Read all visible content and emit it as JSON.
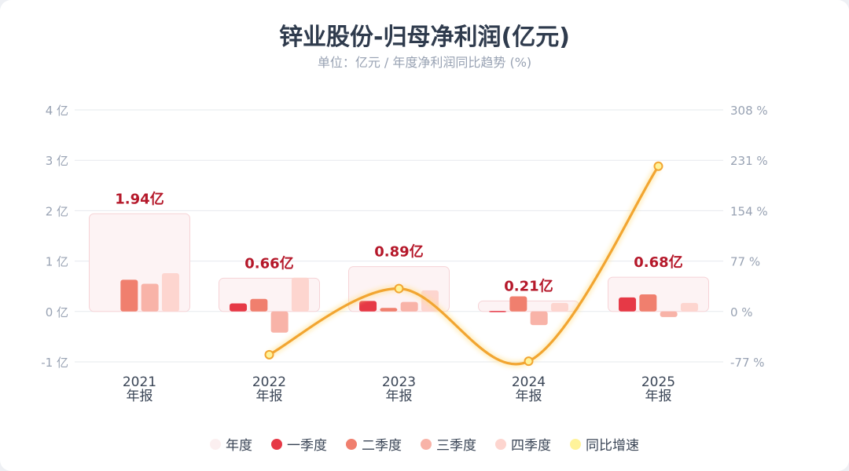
{
  "chart_data": {
    "type": "bar",
    "title": "锌业股份-归母净利润(亿元)",
    "subtitle": "单位：亿元 / 年度净利润同比趋势 (%)",
    "categories": [
      {
        "year": "2021",
        "kind": "年报"
      },
      {
        "year": "2022",
        "kind": "年报"
      },
      {
        "year": "2023",
        "kind": "年报"
      },
      {
        "year": "2024",
        "kind": "年报"
      },
      {
        "year": "2025",
        "kind": "年报"
      }
    ],
    "annual": {
      "name": "年度",
      "values": [
        1.94,
        0.66,
        0.89,
        0.21,
        0.68
      ],
      "labels": [
        "1.94亿",
        "0.66亿",
        "0.89亿",
        "0.21亿",
        "0.68亿"
      ]
    },
    "series": [
      {
        "name": "一季度",
        "values": [
          null,
          0.16,
          0.21,
          0.01,
          0.28
        ]
      },
      {
        "name": "二季度",
        "values": [
          0.63,
          0.25,
          0.07,
          0.3,
          0.34
        ]
      },
      {
        "name": "三季度",
        "values": [
          0.55,
          -0.42,
          0.19,
          -0.27,
          -0.11
        ]
      },
      {
        "name": "四季度",
        "values": [
          0.76,
          0.67,
          0.42,
          0.17,
          0.17
        ]
      }
    ],
    "yoy": {
      "name": "同比增速",
      "values": [
        null,
        -66,
        35,
        -76,
        222
      ]
    },
    "y_left": {
      "range": [
        -1,
        4
      ],
      "ticks": [
        -1,
        0,
        1,
        2,
        3,
        4
      ],
      "tick_labels": [
        "-1 亿",
        "0 亿",
        "1 亿",
        "2 亿",
        "3 亿",
        "4 亿"
      ]
    },
    "y_right": {
      "range": [
        -77,
        308
      ],
      "ticks": [
        -77,
        0,
        77,
        154,
        231,
        308
      ],
      "tick_labels": [
        "-77 %",
        "0 %",
        "77 %",
        "154 %",
        "231 %",
        "308 %"
      ]
    },
    "grid": true,
    "legend_position": "bottom-center",
    "legend": [
      {
        "name": "年度",
        "color": "#fbeff0"
      },
      {
        "name": "一季度",
        "color": "#e63946"
      },
      {
        "name": "二季度",
        "color": "#f07f6e"
      },
      {
        "name": "三季度",
        "color": "#f8b3a8"
      },
      {
        "name": "四季度",
        "color": "#fdd5cf"
      },
      {
        "name": "同比增速",
        "color": "#fff39a"
      }
    ],
    "colors": {
      "q1": "#e63946",
      "q2": "#f07f6e",
      "q3": "#f8b3a8",
      "q4": "#fdd5cf",
      "annual_fill": "#fdf3f4",
      "annual_stroke": "#f6d3d6",
      "annual_label": "#b5182a",
      "line": "#f2a531",
      "point_fill": "#fff39a",
      "axis_text": "#98a2b3",
      "grid": "#e6e9ee"
    }
  }
}
